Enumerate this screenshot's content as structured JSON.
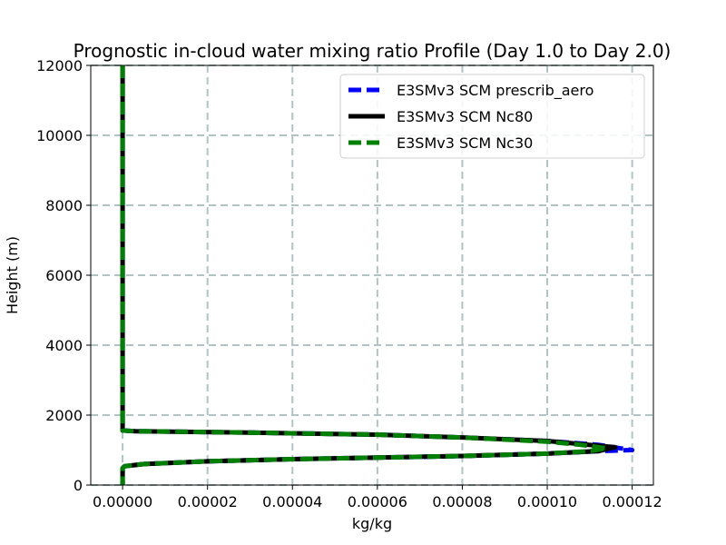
{
  "chart_data": {
    "type": "line",
    "title": "Prognostic in-cloud water mixing ratio Profile (Day 1.0 to Day 2.0)",
    "xlabel": "kg/kg",
    "ylabel": "Height (m)",
    "xlim": [
      -7.5e-06,
      0.000125
    ],
    "ylim": [
      0,
      12000
    ],
    "xticks": [
      0,
      2e-05,
      4e-05,
      6e-05,
      8e-05,
      0.0001,
      0.00012
    ],
    "xtick_labels": [
      "0.00000",
      "0.00002",
      "0.00004",
      "0.00006",
      "0.00008",
      "0.00010",
      "0.00012"
    ],
    "yticks": [
      0,
      2000,
      4000,
      6000,
      8000,
      10000,
      12000
    ],
    "ytick_labels": [
      "0",
      "2000",
      "4000",
      "6000",
      "8000",
      "10000",
      "12000"
    ],
    "grid": true,
    "legend_position": "top-right",
    "series": [
      {
        "name": "E3SMv3 SCM prescrib_aero",
        "color": "#0000ff",
        "style": "dashed",
        "points": [
          [
            0,
            12000
          ],
          [
            0,
            1600
          ],
          [
            0,
            1560
          ],
          [
            3e-06,
            1540
          ],
          [
            3e-05,
            1500
          ],
          [
            6e-05,
            1440
          ],
          [
            8e-05,
            1360
          ],
          [
            0.0001,
            1260
          ],
          [
            0.000112,
            1150
          ],
          [
            0.00012,
            1000
          ],
          [
            0.000112,
            970
          ],
          [
            0.0001,
            900
          ],
          [
            8e-05,
            830
          ],
          [
            4e-05,
            740
          ],
          [
            2e-05,
            680
          ],
          [
            5e-06,
            600
          ],
          [
            5e-07,
            540
          ],
          [
            0,
            480
          ],
          [
            0,
            0
          ]
        ]
      },
      {
        "name": "E3SMv3 SCM Nc80",
        "color": "#000000",
        "style": "solid",
        "points": [
          [
            0,
            12000
          ],
          [
            0,
            1600
          ],
          [
            0,
            1560
          ],
          [
            3e-06,
            1540
          ],
          [
            3e-05,
            1500
          ],
          [
            6e-05,
            1440
          ],
          [
            8e-05,
            1360
          ],
          [
            0.0001,
            1260
          ],
          [
            0.000108,
            1170
          ],
          [
            0.000116,
            1080
          ],
          [
            0.000112,
            970
          ],
          [
            0.0001,
            900
          ],
          [
            8e-05,
            830
          ],
          [
            4e-05,
            740
          ],
          [
            2e-05,
            680
          ],
          [
            5e-06,
            600
          ],
          [
            5e-07,
            540
          ],
          [
            0,
            480
          ],
          [
            0,
            0
          ]
        ]
      },
      {
        "name": "E3SMv3 SCM Nc30",
        "color": "#008000",
        "style": "dashed",
        "points": [
          [
            0,
            12000
          ],
          [
            0,
            1600
          ],
          [
            0,
            1560
          ],
          [
            3e-06,
            1540
          ],
          [
            3e-05,
            1500
          ],
          [
            6e-05,
            1440
          ],
          [
            8e-05,
            1360
          ],
          [
            0.0001,
            1240
          ],
          [
            0.000108,
            1150
          ],
          [
            0.000114,
            1050
          ],
          [
            0.00011,
            970
          ],
          [
            0.0001,
            900
          ],
          [
            8e-05,
            830
          ],
          [
            4e-05,
            740
          ],
          [
            2e-05,
            680
          ],
          [
            5e-06,
            600
          ],
          [
            5e-07,
            540
          ],
          [
            0,
            480
          ],
          [
            0,
            0
          ]
        ]
      }
    ]
  }
}
